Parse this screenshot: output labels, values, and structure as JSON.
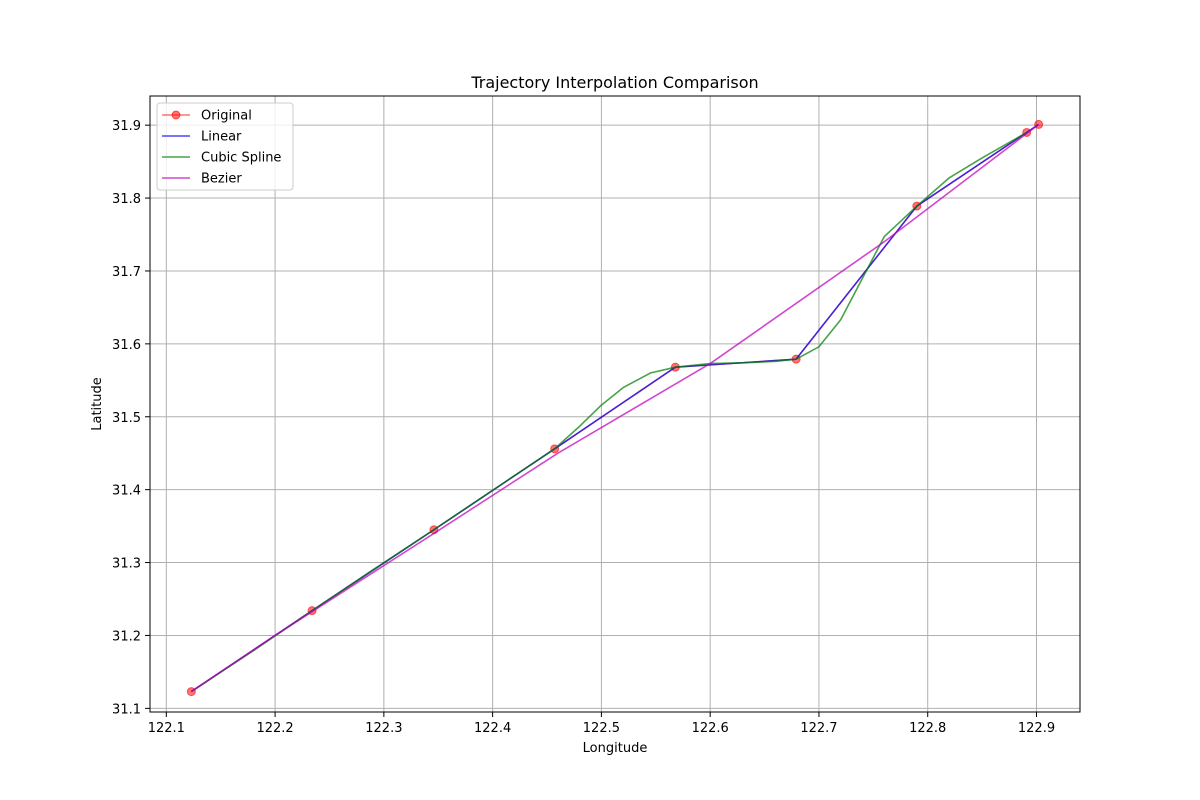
{
  "chart_data": {
    "type": "line",
    "title": "Trajectory Interpolation Comparison",
    "xlabel": "Longitude",
    "ylabel": "Latitude",
    "xlim": [
      122.085,
      122.94
    ],
    "ylim": [
      31.095,
      31.94
    ],
    "xticks": [
      122.1,
      122.2,
      122.3,
      122.4,
      122.5,
      122.6,
      122.7,
      122.8,
      122.9
    ],
    "yticks": [
      31.1,
      31.2,
      31.3,
      31.4,
      31.5,
      31.6,
      31.7,
      31.8,
      31.9
    ],
    "grid": true,
    "legend_position": "top-left",
    "series": [
      {
        "name": "Original",
        "style": "markers",
        "color": "#ff0000",
        "x": [
          122.123,
          122.234,
          122.346,
          122.457,
          122.568,
          122.679,
          122.79,
          122.891,
          122.902
        ],
        "y": [
          31.123,
          31.234,
          31.345,
          31.456,
          31.568,
          31.579,
          31.789,
          31.89,
          31.901
        ]
      },
      {
        "name": "Linear",
        "style": "line",
        "color": "#0000ff",
        "x": [
          122.123,
          122.234,
          122.346,
          122.457,
          122.568,
          122.679,
          122.79,
          122.891,
          122.902
        ],
        "y": [
          31.123,
          31.234,
          31.345,
          31.456,
          31.568,
          31.579,
          31.789,
          31.89,
          31.901
        ]
      },
      {
        "name": "Cubic Spline",
        "style": "line",
        "color": "#008000",
        "x": [
          122.123,
          122.18,
          122.234,
          122.29,
          122.346,
          122.4,
          122.457,
          122.48,
          122.5,
          122.52,
          122.545,
          122.568,
          122.6,
          122.63,
          122.66,
          122.679,
          122.7,
          122.72,
          122.74,
          122.76,
          122.79,
          122.82,
          122.85,
          122.891
        ],
        "y": [
          31.123,
          31.179,
          31.234,
          31.29,
          31.345,
          31.399,
          31.456,
          31.487,
          31.516,
          31.54,
          31.56,
          31.568,
          31.573,
          31.574,
          31.576,
          31.579,
          31.596,
          31.633,
          31.69,
          31.747,
          31.789,
          31.828,
          31.855,
          31.89
        ]
      },
      {
        "name": "Bezier",
        "style": "line",
        "color": "#bf00bf",
        "x": [
          122.123,
          122.2,
          122.346,
          122.46,
          122.6,
          122.76,
          122.902
        ],
        "y": [
          31.123,
          31.2,
          31.34,
          31.45,
          31.573,
          31.74,
          31.901
        ]
      }
    ]
  }
}
